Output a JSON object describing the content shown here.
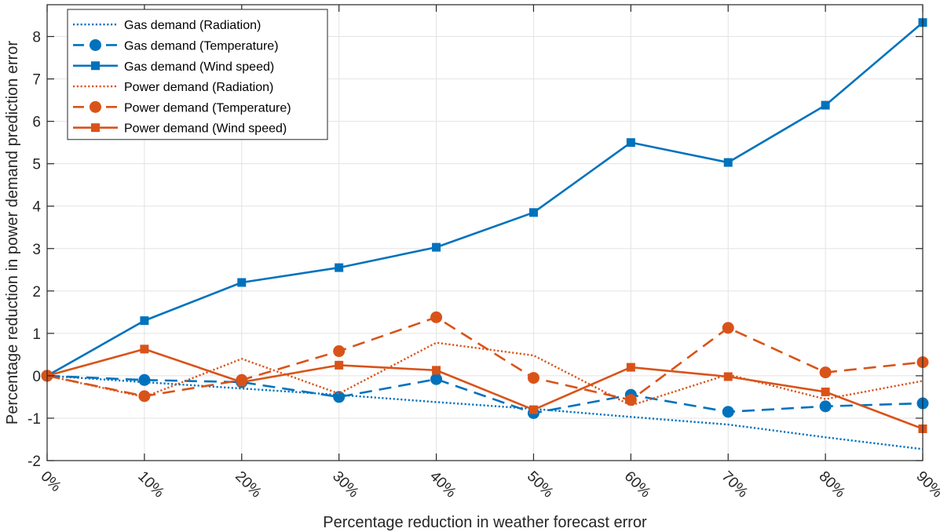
{
  "chart_data": {
    "type": "line",
    "title": "",
    "xlabel": "Percentage reduction in weather forecast error",
    "ylabel": "Percentage reduction in power demand prediction error",
    "categories": [
      "0%",
      "10%",
      "20%",
      "30%",
      "40%",
      "50%",
      "60%",
      "70%",
      "80%",
      "90%"
    ],
    "x": [
      0,
      10,
      20,
      30,
      40,
      50,
      60,
      70,
      80,
      90
    ],
    "xlim": [
      0,
      90
    ],
    "ylim": [
      -2,
      8.75
    ],
    "yticks": [
      -2,
      -1,
      0,
      1,
      2,
      3,
      4,
      5,
      6,
      7,
      8
    ],
    "ytick_labels": [
      "-2",
      "-1",
      "0",
      "1",
      "2",
      "3",
      "4",
      "5",
      "6",
      "7",
      "8"
    ],
    "grid": true,
    "legend_position": "top-left",
    "series": [
      {
        "name": "Gas demand (Radiation)",
        "color": "#0072BD",
        "line": "dotted",
        "marker": "none",
        "values": [
          0,
          -0.15,
          -0.3,
          -0.45,
          -0.62,
          -0.78,
          -0.97,
          -1.15,
          -1.45,
          -1.73
        ]
      },
      {
        "name": "Gas demand (Temperature)",
        "color": "#0072BD",
        "line": "dashed",
        "marker": "circle",
        "values": [
          0,
          -0.1,
          -0.15,
          -0.5,
          -0.08,
          -0.88,
          -0.45,
          -0.85,
          -0.72,
          -0.65
        ]
      },
      {
        "name": "Gas demand (Wind speed)",
        "color": "#0072BD",
        "line": "solid",
        "marker": "square",
        "values": [
          0,
          1.3,
          2.2,
          2.55,
          3.03,
          3.85,
          5.5,
          5.03,
          6.38,
          8.33
        ]
      },
      {
        "name": "Power demand (Radiation)",
        "color": "#D95319",
        "line": "dotted",
        "marker": "none",
        "values": [
          0,
          -0.5,
          0.4,
          -0.42,
          0.78,
          0.48,
          -0.7,
          0.03,
          -0.55,
          -0.12
        ]
      },
      {
        "name": "Power demand (Temperature)",
        "color": "#D95319",
        "line": "dashed",
        "marker": "circle",
        "values": [
          0,
          -0.48,
          -0.1,
          0.58,
          1.38,
          -0.05,
          -0.57,
          1.13,
          0.08,
          0.32
        ]
      },
      {
        "name": "Power demand (Wind speed)",
        "color": "#D95319",
        "line": "solid",
        "marker": "square",
        "values": [
          0,
          0.63,
          -0.15,
          0.25,
          0.13,
          -0.8,
          0.2,
          -0.02,
          -0.38,
          -1.25
        ]
      }
    ]
  }
}
